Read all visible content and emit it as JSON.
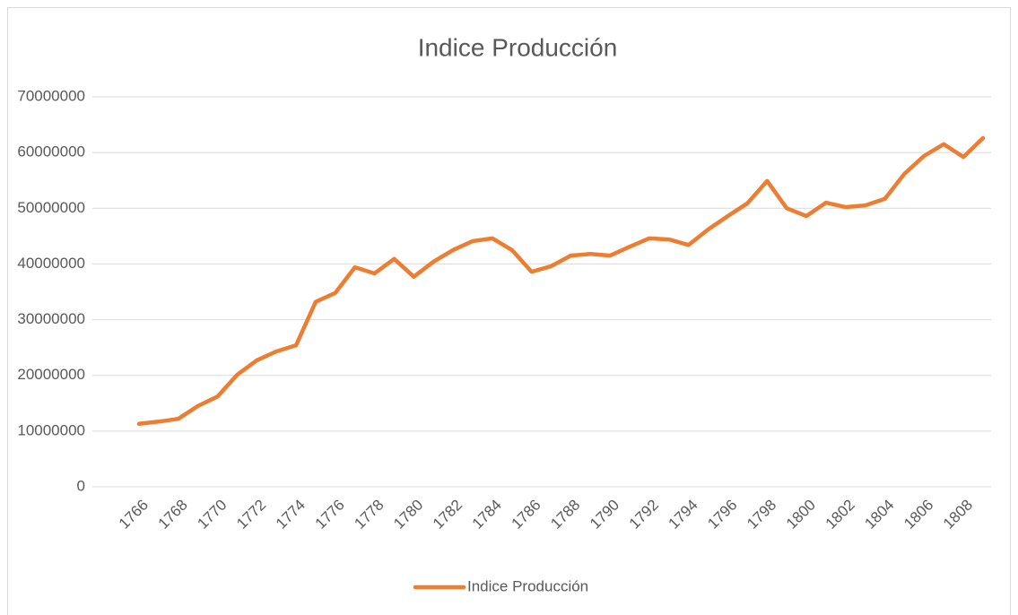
{
  "chart_data": {
    "type": "line",
    "title": "Indice Producción",
    "categories": [
      "1766",
      null,
      "1768",
      null,
      "1770",
      null,
      "1772",
      null,
      "1774",
      null,
      "1776",
      null,
      "1778",
      null,
      "1780",
      null,
      "1782",
      null,
      "1784",
      null,
      "1786",
      null,
      "1788",
      null,
      "1790",
      null,
      "1792",
      null,
      "1794",
      null,
      "1796",
      null,
      "1798",
      null,
      "1800",
      null,
      "1802",
      null,
      "1804",
      null,
      "1806",
      null,
      "1808",
      null
    ],
    "series": [
      {
        "name": "Indice Producción",
        "color": "#ed7d31",
        "values": [
          11300000,
          11700000,
          12200000,
          14500000,
          16200000,
          20100000,
          22700000,
          24300000,
          25400000,
          33200000,
          34800000,
          39400000,
          38300000,
          40900000,
          37700000,
          40400000,
          42500000,
          44100000,
          44600000,
          42500000,
          38600000,
          39600000,
          41500000,
          41800000,
          41500000,
          43100000,
          44600000,
          44400000,
          43400000,
          46200000,
          48600000,
          50900000,
          54900000,
          50000000,
          48600000,
          51000000,
          50200000,
          50500000,
          51700000,
          56200000,
          59400000,
          61500000,
          59200000,
          62600000
        ]
      }
    ],
    "ylim": [
      0,
      70000000
    ],
    "yticks": [
      0,
      10000000,
      20000000,
      30000000,
      40000000,
      50000000,
      60000000,
      70000000
    ],
    "grid": true,
    "legend": "bottom"
  }
}
